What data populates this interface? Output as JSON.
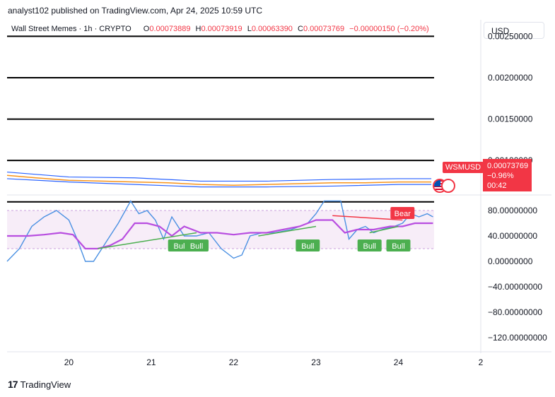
{
  "header": {
    "publisher_line": "analyst102 published on TradingView.com, Apr 24, 2025 10:59 UTC"
  },
  "legend": {
    "symbol": "Wall Street Memes · 1h · CRYPTO",
    "o_label": "O",
    "o_value": "0.00073889",
    "h_label": "H",
    "h_value": "0.00073919",
    "l_label": "L",
    "l_value": "0.00063390",
    "c_label": "C",
    "c_value": "0.00073769",
    "change": "−0.00000150 (−0.20%)"
  },
  "currency": "USD",
  "ticker_tag": "WSMUSD",
  "price_box": {
    "price": "0.00073769",
    "change_pct": "−0.96%",
    "countdown": "00:42"
  },
  "footer": {
    "brand": "TradingView",
    "mark": "17"
  },
  "colors": {
    "down": "#f23645",
    "up": "#4caf50",
    "rsi_fast": "#4a90e2",
    "rsi_slow": "#b84ee0"
  },
  "chart_data": [
    {
      "type": "line",
      "panel": "price",
      "ylim": [
        0.0006,
        0.0027
      ],
      "y_ticks": [
        "0.00250000",
        "0.00200000",
        "0.00150000",
        "0.00100000"
      ],
      "y_tick_values": [
        0.0025,
        0.002,
        0.0015,
        0.001
      ],
      "horizontal_levels": [
        0.0025,
        0.002,
        0.0015,
        0.001,
        0.0005
      ],
      "x_ticks": [
        "20",
        "21",
        "22",
        "23",
        "24",
        "2"
      ],
      "x_tick_values": [
        20,
        21,
        22,
        23,
        24,
        25
      ],
      "xlim": [
        19.25,
        25.0
      ],
      "series": [
        {
          "role": "price",
          "x": [
            19.25,
            19.6,
            20.0,
            20.4,
            20.8,
            21.2,
            21.6,
            22.0,
            22.4,
            22.8,
            23.2,
            23.6,
            24.0,
            24.4
          ],
          "values": [
            0.00082,
            0.00079,
            0.00076,
            0.00075,
            0.00074,
            0.00073,
            0.00071,
            0.0007,
            0.00071,
            0.00072,
            0.00073,
            0.00073,
            0.00074,
            0.00074
          ]
        },
        {
          "role": "upper_band",
          "x": [
            19.25,
            20.0,
            20.8,
            21.6,
            22.4,
            23.2,
            24.0,
            24.4
          ],
          "values": [
            0.00086,
            0.0008,
            0.00079,
            0.00075,
            0.00075,
            0.00077,
            0.00078,
            0.00078
          ]
        },
        {
          "role": "lower_band",
          "x": [
            19.25,
            20.0,
            20.8,
            21.6,
            22.4,
            23.2,
            24.0,
            24.4
          ],
          "values": [
            0.00078,
            0.00074,
            0.00071,
            0.00068,
            0.00068,
            0.00069,
            0.00071,
            0.00071
          ]
        }
      ]
    },
    {
      "type": "line",
      "panel": "rsi",
      "ylim": [
        -140,
        100
      ],
      "y_ticks": [
        "80.00000000",
        "40.00000000",
        "0.00000000",
        "−40.00000000",
        "−80.00000000",
        "−120.00000000"
      ],
      "y_tick_values": [
        80,
        40,
        0,
        -40,
        -80,
        -120
      ],
      "band": [
        20,
        80
      ],
      "x_ticks": [
        "20",
        "21",
        "22",
        "23",
        "24",
        "2"
      ],
      "x_tick_values": [
        20,
        21,
        22,
        23,
        24,
        25
      ],
      "xlim": [
        19.25,
        25.0
      ],
      "series": [
        {
          "role": "fast",
          "x": [
            19.25,
            19.4,
            19.55,
            19.7,
            19.85,
            20.0,
            20.1,
            20.2,
            20.3,
            20.45,
            20.6,
            20.75,
            20.85,
            20.95,
            21.05,
            21.15,
            21.25,
            21.4,
            21.55,
            21.7,
            21.85,
            22.0,
            22.1,
            22.2,
            22.35,
            22.5,
            22.7,
            22.9,
            23.0,
            23.1,
            23.3,
            23.4,
            23.5,
            23.6,
            23.7,
            23.8,
            23.95,
            24.05,
            24.15,
            24.25,
            24.35,
            24.42
          ],
          "values": [
            0,
            20,
            55,
            70,
            80,
            65,
            35,
            0,
            0,
            30,
            60,
            95,
            75,
            80,
            65,
            35,
            70,
            40,
            40,
            45,
            20,
            5,
            10,
            40,
            45,
            45,
            50,
            60,
            75,
            95,
            95,
            35,
            50,
            55,
            45,
            50,
            55,
            60,
            75,
            70,
            75,
            70
          ]
        },
        {
          "role": "slow",
          "x": [
            19.25,
            19.5,
            19.7,
            19.9,
            20.05,
            20.2,
            20.35,
            20.5,
            20.65,
            20.8,
            20.95,
            21.1,
            21.25,
            21.4,
            21.6,
            21.8,
            22.0,
            22.2,
            22.4,
            22.6,
            22.8,
            23.0,
            23.2,
            23.35,
            23.5,
            23.7,
            23.9,
            24.05,
            24.2,
            24.42
          ],
          "values": [
            40,
            40,
            42,
            45,
            42,
            20,
            20,
            25,
            35,
            60,
            60,
            55,
            40,
            55,
            45,
            45,
            42,
            45,
            45,
            50,
            55,
            65,
            65,
            45,
            50,
            50,
            55,
            55,
            60,
            60
          ]
        }
      ],
      "signals": [
        {
          "label": "Bull",
          "x": 21.35
        },
        {
          "label": "Bull",
          "x": 21.55
        },
        {
          "label": "Bull",
          "x": 22.9
        },
        {
          "label": "Bull",
          "x": 23.65
        },
        {
          "label": "Bull",
          "x": 24.0
        },
        {
          "label": "Bear",
          "x": 24.05
        }
      ]
    }
  ]
}
